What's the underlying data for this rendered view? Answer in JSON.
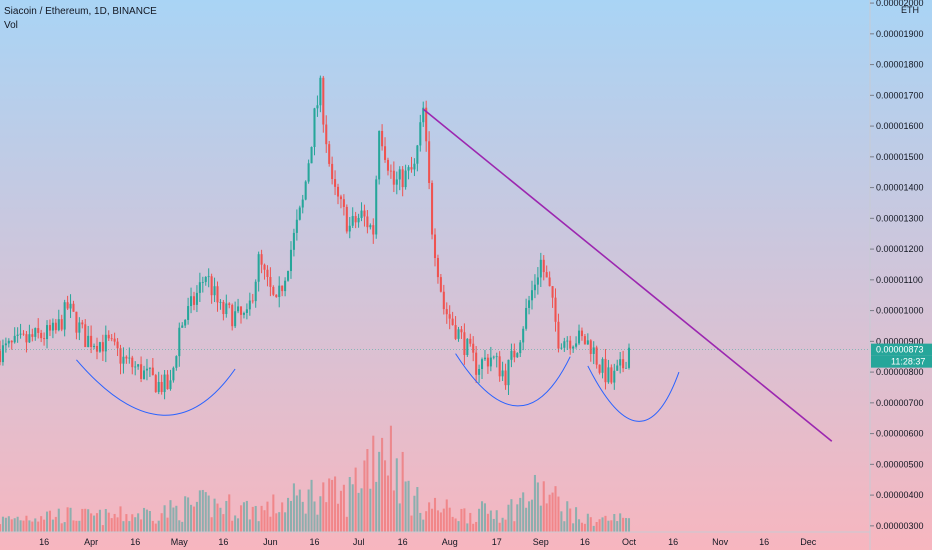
{
  "header": {
    "title": "Siacoin / Ethereum, 1D, BINANCE",
    "volume_label": "Vol",
    "currency": "ETH"
  },
  "price_axis": {
    "ticks": [
      "0.00002000",
      "0.00001900",
      "0.00001800",
      "0.00001700",
      "0.00001600",
      "0.00001500",
      "0.00001400",
      "0.00001300",
      "0.00001200",
      "0.00001100",
      "0.00001000",
      "0.00000900",
      "0.00000800",
      "0.00000700",
      "0.00000600",
      "0.00000500",
      "0.00000400",
      "0.00000300"
    ],
    "current_price_label": "0.00000873",
    "countdown_label": "11:28:37"
  },
  "time_axis": {
    "ticks": [
      "16",
      "Apr",
      "16",
      "May",
      "16",
      "Jun",
      "16",
      "Jul",
      "16",
      "Aug",
      "17",
      "Sep",
      "16",
      "Oct",
      "16",
      "Nov",
      "16",
      "Dec"
    ]
  },
  "colors": {
    "up": "#26a69a",
    "down": "#ef5350",
    "trendline": "#9c27b0",
    "arc": "#2962ff",
    "price_badge": "#26a69a",
    "bg_top": "#a9d4f5",
    "bg_bottom": "#f7b6bf"
  },
  "chart_data": {
    "type": "candlestick",
    "symbol": "Siacoin / Ethereum",
    "interval": "1D",
    "exchange": "BINANCE",
    "ylim": [
      2.8e-06,
      2.01e-05
    ],
    "current_price": 8.73e-06,
    "volume_price_scale": {
      "base": 2.8e-06,
      "top": 6.7e-06,
      "max_volume": 1
    },
    "close_series": [
      {
        "date": "2020-03-02",
        "close": 8.7e-06
      },
      {
        "date": "2020-03-12",
        "close": 9.1e-06
      },
      {
        "date": "2020-03-20",
        "close": 9.3e-06
      },
      {
        "date": "2020-03-24",
        "close": 1.01e-05
      },
      {
        "date": "2020-03-30",
        "close": 9.1e-06
      },
      {
        "date": "2020-04-07",
        "close": 8.9e-06
      },
      {
        "date": "2020-04-12",
        "close": 8.4e-06
      },
      {
        "date": "2020-04-18",
        "close": 8e-06
      },
      {
        "date": "2020-04-24",
        "close": 7.6e-06
      },
      {
        "date": "2020-04-28",
        "close": 7.5e-06
      },
      {
        "date": "2020-05-01",
        "close": 9.4e-06
      },
      {
        "date": "2020-05-06",
        "close": 1.03e-05
      },
      {
        "date": "2020-05-10",
        "close": 1.12e-05
      },
      {
        "date": "2020-05-15",
        "close": 1e-05
      },
      {
        "date": "2020-05-24",
        "close": 9.7e-06
      },
      {
        "date": "2020-05-28",
        "close": 1.16e-05
      },
      {
        "date": "2020-06-03",
        "close": 1.01e-05
      },
      {
        "date": "2020-06-08",
        "close": 1.2e-05
      },
      {
        "date": "2020-06-12",
        "close": 1.35e-05
      },
      {
        "date": "2020-06-16",
        "close": 1.63e-05
      },
      {
        "date": "2020-06-18",
        "close": 1.72e-05
      },
      {
        "date": "2020-06-22",
        "close": 1.4e-05
      },
      {
        "date": "2020-06-28",
        "close": 1.27e-05
      },
      {
        "date": "2020-07-02",
        "close": 1.31e-05
      },
      {
        "date": "2020-07-06",
        "close": 1.26e-05
      },
      {
        "date": "2020-07-08",
        "close": 1.61e-05
      },
      {
        "date": "2020-07-10",
        "close": 1.52e-05
      },
      {
        "date": "2020-07-13",
        "close": 1.41e-05
      },
      {
        "date": "2020-07-20",
        "close": 1.46e-05
      },
      {
        "date": "2020-07-23",
        "close": 1.65e-05
      },
      {
        "date": "2020-07-26",
        "close": 1.27e-05
      },
      {
        "date": "2020-07-30",
        "close": 1.01e-05
      },
      {
        "date": "2020-08-05",
        "close": 9.1e-06
      },
      {
        "date": "2020-08-10",
        "close": 8.2e-06
      },
      {
        "date": "2020-08-15",
        "close": 8.5e-06
      },
      {
        "date": "2020-08-20",
        "close": 7.9e-06
      },
      {
        "date": "2020-08-24",
        "close": 8.9e-06
      },
      {
        "date": "2020-08-28",
        "close": 1.03e-05
      },
      {
        "date": "2020-09-01",
        "close": 1.16e-05
      },
      {
        "date": "2020-09-04",
        "close": 1.06e-05
      },
      {
        "date": "2020-09-07",
        "close": 9.1e-06
      },
      {
        "date": "2020-09-13",
        "close": 9.1e-06
      },
      {
        "date": "2020-09-18",
        "close": 8.9e-06
      },
      {
        "date": "2020-09-21",
        "close": 8.2e-06
      },
      {
        "date": "2020-09-25",
        "close": 7.7e-06
      },
      {
        "date": "2020-09-29",
        "close": 8.2e-06
      },
      {
        "date": "2020-10-01",
        "close": 8.8e-06
      }
    ],
    "volume_series": [
      {
        "date": "2020-03-02",
        "value": 0.12
      },
      {
        "date": "2020-03-16",
        "value": 0.18
      },
      {
        "date": "2020-04-05",
        "value": 0.15
      },
      {
        "date": "2020-04-25",
        "value": 0.2
      },
      {
        "date": "2020-05-10",
        "value": 0.28
      },
      {
        "date": "2020-05-30",
        "value": 0.22
      },
      {
        "date": "2020-06-12",
        "value": 0.35
      },
      {
        "date": "2020-06-17",
        "value": 0.4
      },
      {
        "date": "2020-06-27",
        "value": 0.34
      },
      {
        "date": "2020-07-09",
        "value": 1.0
      },
      {
        "date": "2020-07-20",
        "value": 0.3
      },
      {
        "date": "2020-08-05",
        "value": 0.18
      },
      {
        "date": "2020-08-21",
        "value": 0.22
      },
      {
        "date": "2020-09-01",
        "value": 0.42
      },
      {
        "date": "2020-09-15",
        "value": 0.12
      },
      {
        "date": "2020-10-01",
        "value": 0.14
      }
    ],
    "annotations": {
      "trendline": {
        "start": {
          "date": "2020-07-23",
          "price": 1.655e-05
        },
        "end": {
          "date": "2020-12-09",
          "price": 5.75e-06
        }
      },
      "arcs": [
        {
          "start": {
            "date": "2020-03-27",
            "price": 8.4e-06
          },
          "bottom": {
            "date": "2020-04-25",
            "price": 6.6e-06
          },
          "end": {
            "date": "2020-05-20",
            "price": 8.1e-06
          }
        },
        {
          "start": {
            "date": "2020-08-03",
            "price": 8.6e-06
          },
          "bottom": {
            "date": "2020-08-24",
            "price": 6.9e-06
          },
          "end": {
            "date": "2020-09-11",
            "price": 8.5e-06
          }
        },
        {
          "start": {
            "date": "2020-09-17",
            "price": 8.2e-06
          },
          "bottom": {
            "date": "2020-10-04",
            "price": 6.4e-06
          },
          "end": {
            "date": "2020-10-18",
            "price": 8e-06
          }
        }
      ]
    }
  }
}
